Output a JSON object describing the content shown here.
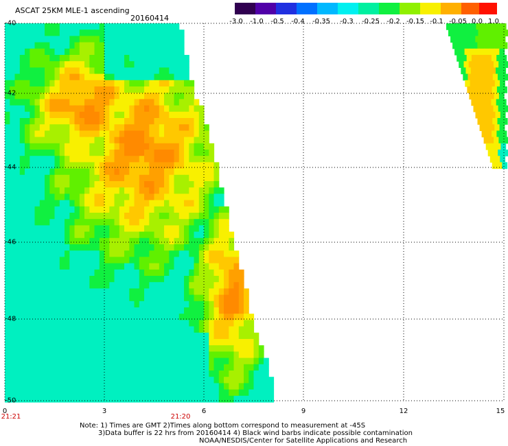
{
  "header": {
    "title": "ASCAT 25KM MLE-1 ascending",
    "date": "20160414"
  },
  "colorbar": {
    "labels": [
      "-3.0",
      "-1.0",
      "-0.5",
      "-0.4",
      "-0.35",
      "-0.3",
      "-0.25",
      "-0.2",
      "-0.15",
      "-0.1",
      "-0.05",
      "0.0",
      "1.0"
    ],
    "colors": [
      "#300050",
      "#5000a8",
      "#2030e0",
      "#0070ff",
      "#00b8ff",
      "#00f0f0",
      "#00f0a0",
      "#10f040",
      "#90f000",
      "#f8f000",
      "#ffb000",
      "#ff6000",
      "#ff1000"
    ]
  },
  "axes": {
    "y_ticks": [
      "-40",
      "-42",
      "-44",
      "-46",
      "-48",
      "-50"
    ],
    "x_ticks": [
      "0",
      "3",
      "6",
      "9",
      "12",
      "15"
    ],
    "time_labels": [
      "21:21",
      "21:20"
    ]
  },
  "notes": {
    "line1": "Note: 1) Times are GMT 2)Times along bottom correspond to measurement at -45S",
    "line2": "3)Data buffer is 22 hrs from 20160414 4) Black wind barbs indicate possible contamination",
    "line3": "NOAA/NESDIS/Center for Satellite Applications and Research"
  }
}
